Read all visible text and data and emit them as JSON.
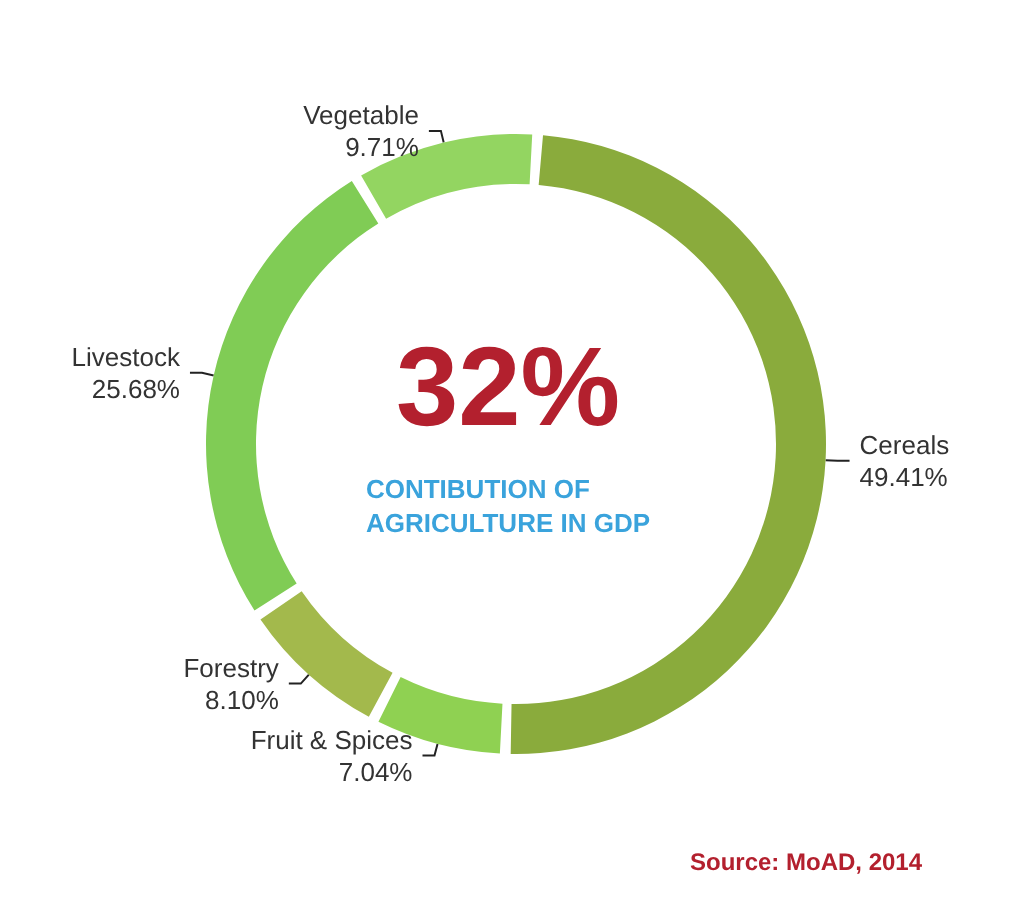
{
  "chart_data": {
    "type": "donut",
    "categories": [
      "Cereals",
      "Fruit & Spices",
      "Forestry",
      "Livestock",
      "Vegetable"
    ],
    "values": [
      49.41,
      7.04,
      8.1,
      25.68,
      9.71
    ],
    "value_labels": [
      "49.41%",
      "7.04%",
      "8.10%",
      "25.68%",
      "9.71%"
    ],
    "colors": [
      "#8aab3c",
      "#8fd152",
      "#a3b94c",
      "#80cc55",
      "#93d561"
    ],
    "annotations": [
      "32%",
      "CONTIBUTION OF\nAGRICULTURE IN GDP",
      "Source: MoAD, 2014"
    ],
    "legend": false
  }
}
